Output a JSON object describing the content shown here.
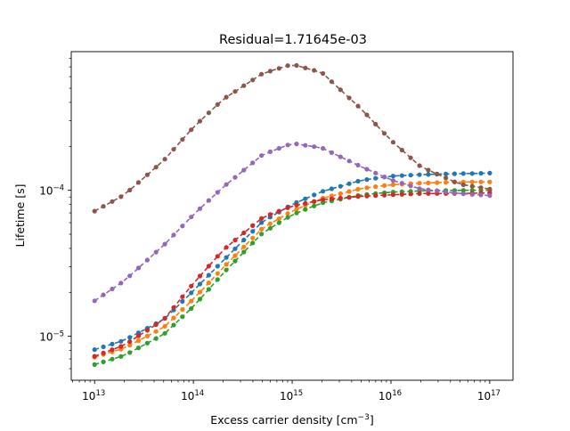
{
  "chart_data": {
    "type": "scatter",
    "title": "Residual=1.71645e-03",
    "xlabel": "Excess carrier density [cm",
    "xlabel_sup": "−3",
    "xlabel_end": "]",
    "ylabel": "Lifetime [s]",
    "xscale": "log",
    "yscale": "log",
    "xlim": [
      5800000000000.0,
      1.72e+17
    ],
    "ylim": [
      5e-06,
      0.00089
    ],
    "x_ticks": [
      {
        "base": "10",
        "exp": "13",
        "value": 10000000000000.0
      },
      {
        "base": "10",
        "exp": "14",
        "value": 100000000000000.0
      },
      {
        "base": "10",
        "exp": "15",
        "value": 1000000000000000.0
      },
      {
        "base": "10",
        "exp": "16",
        "value": 1e+16
      },
      {
        "base": "10",
        "exp": "17",
        "value": 1e+17
      }
    ],
    "y_ticks": [
      {
        "base": "10",
        "exp": "−5",
        "value": 1e-05
      },
      {
        "base": "10",
        "exp": "−4",
        "value": 0.0001
      }
    ],
    "grid": false,
    "legend": "none",
    "points_per_series": 46,
    "series": [
      {
        "color": "#1f77b4",
        "anchors": [
          [
            10000000000000.0,
            8.1e-06
          ],
          [
            20000000000000.0,
            9.4e-06
          ],
          [
            50000000000000.0,
            1.3e-05
          ],
          [
            100000000000000.0,
            2.05e-05
          ],
          [
            200000000000000.0,
            3.3e-05
          ],
          [
            500000000000000.0,
            6.1e-05
          ],
          [
            1000000000000000.0,
            8e-05
          ],
          [
            2000000000000000.0,
            9.8e-05
          ],
          [
            5000000000000000.0,
            0.000117
          ],
          [
            1e+16,
            0.000125
          ],
          [
            2e+16,
            0.000128
          ],
          [
            5e+16,
            0.00013
          ],
          [
            1e+17,
            0.000131
          ]
        ]
      },
      {
        "color": "#ff7f0e",
        "anchors": [
          [
            10000000000000.0,
            7.2e-06
          ],
          [
            20000000000000.0,
            8.3e-06
          ],
          [
            50000000000000.0,
            1.15e-05
          ],
          [
            100000000000000.0,
            1.8e-05
          ],
          [
            200000000000000.0,
            2.95e-05
          ],
          [
            500000000000000.0,
            5.5e-05
          ],
          [
            1000000000000000.0,
            7.2e-05
          ],
          [
            2000000000000000.0,
            8.8e-05
          ],
          [
            5000000000000000.0,
            0.000103
          ],
          [
            1e+16,
            0.000109
          ],
          [
            2e+16,
            0.000112
          ],
          [
            5e+16,
            0.000114
          ],
          [
            1e+17,
            0.000114
          ]
        ]
      },
      {
        "color": "#2ca02c",
        "anchors": [
          [
            10000000000000.0,
            6.4e-06
          ],
          [
            20000000000000.0,
            7.4e-06
          ],
          [
            50000000000000.0,
            1.03e-05
          ],
          [
            100000000000000.0,
            1.6e-05
          ],
          [
            200000000000000.0,
            2.7e-05
          ],
          [
            500000000000000.0,
            5.1e-05
          ],
          [
            1000000000000000.0,
            6.8e-05
          ],
          [
            2000000000000000.0,
            8.2e-05
          ],
          [
            5000000000000000.0,
            9.3e-05
          ],
          [
            1e+16,
            9.7e-05
          ],
          [
            2e+16,
            9.9e-05
          ],
          [
            5e+16,
            0.0001
          ],
          [
            1e+17,
            0.0001
          ]
        ]
      },
      {
        "color": "#d62728",
        "anchors": [
          [
            10000000000000.0,
            7.3e-06
          ],
          [
            20000000000000.0,
            8.7e-06
          ],
          [
            50000000000000.0,
            1.3e-05
          ],
          [
            100000000000000.0,
            2.3e-05
          ],
          [
            200000000000000.0,
            3.9e-05
          ],
          [
            500000000000000.0,
            6.5e-05
          ],
          [
            1000000000000000.0,
            7.8e-05
          ],
          [
            2000000000000000.0,
            8.6e-05
          ],
          [
            5000000000000000.0,
            9.1e-05
          ],
          [
            1e+16,
            9.3e-05
          ],
          [
            2e+16,
            9.5e-05
          ],
          [
            5e+16,
            9.5e-05
          ],
          [
            1e+17,
            9.6e-05
          ]
        ]
      },
      {
        "color": "#9467bd",
        "anchors": [
          [
            10000000000000.0,
            1.75e-05
          ],
          [
            20000000000000.0,
            2.4e-05
          ],
          [
            50000000000000.0,
            4.2e-05
          ],
          [
            100000000000000.0,
            6.8e-05
          ],
          [
            200000000000000.0,
            0.000105
          ],
          [
            500000000000000.0,
            0.000175
          ],
          [
            1000000000000000.0,
            0.00021
          ],
          [
            2000000000000000.0,
            0.000195
          ],
          [
            5000000000000000.0,
            0.000145
          ],
          [
            1e+16,
            0.000118
          ],
          [
            2e+16,
            0.000102
          ],
          [
            5e+16,
            9.5e-05
          ],
          [
            1e+17,
            9.2e-05
          ]
        ]
      },
      {
        "color": "#8c564b",
        "anchors": [
          [
            10000000000000.0,
            7.2e-05
          ],
          [
            20000000000000.0,
            9.3e-05
          ],
          [
            50000000000000.0,
            0.00016
          ],
          [
            100000000000000.0,
            0.00027
          ],
          [
            200000000000000.0,
            0.00042
          ],
          [
            500000000000000.0,
            0.00063
          ],
          [
            1000000000000000.0,
            0.00073
          ],
          [
            2000000000000000.0,
            0.00064
          ],
          [
            5000000000000000.0,
            0.00036
          ],
          [
            1e+16,
            0.00022
          ],
          [
            2e+16,
            0.000145
          ],
          [
            5e+16,
            0.00011
          ],
          [
            1e+17,
            0.000102
          ]
        ]
      }
    ]
  }
}
